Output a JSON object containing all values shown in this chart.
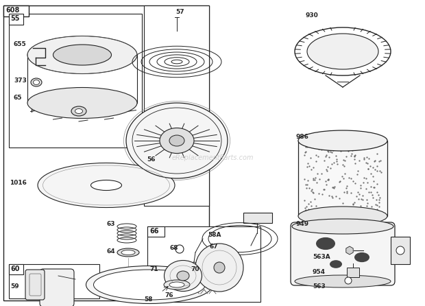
{
  "bg": "#ffffff",
  "lc": "#222222",
  "watermark": "eReplacementParts.com",
  "figw": 6.2,
  "figh": 4.46,
  "dpi": 100
}
